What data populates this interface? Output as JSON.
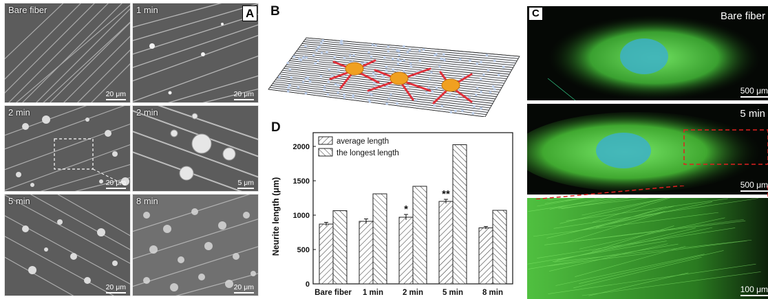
{
  "panel_a": {
    "letter": "A",
    "images": [
      {
        "label": "Bare fiber",
        "scale": "20 μm"
      },
      {
        "label": "1 min",
        "scale": "20 μm"
      },
      {
        "label": "2 min",
        "scale": "20 μm"
      },
      {
        "label": "2 min",
        "scale": "5 μm"
      },
      {
        "label": "5 min",
        "scale": "20 μm"
      },
      {
        "label": "8 min",
        "scale": "20 μm"
      }
    ]
  },
  "panel_b": {
    "letter": "B"
  },
  "panel_c": {
    "letter": "C",
    "images": [
      {
        "label": "Bare fiber",
        "scale": "500 μm"
      },
      {
        "label": "5 min",
        "scale": "500 μm"
      },
      {
        "label": "",
        "scale": "100 μm"
      }
    ]
  },
  "panel_d": {
    "letter": "D"
  },
  "chart_data": {
    "type": "bar",
    "title": "",
    "xlabel": "",
    "ylabel": "Neurite length (μm)",
    "ylim": [
      0,
      2200
    ],
    "yticks": [
      0,
      500,
      1000,
      1500,
      2000
    ],
    "categories": [
      "Bare fiber",
      "1 min",
      "2 min",
      "5 min",
      "8 min"
    ],
    "series": [
      {
        "name": "average length",
        "values": [
          870,
          910,
          970,
          1200,
          815
        ],
        "errors": [
          25,
          35,
          40,
          30,
          20
        ],
        "hatch": "forward"
      },
      {
        "name": "the longest length",
        "values": [
          1065,
          1310,
          1420,
          2025,
          1070
        ],
        "hatch": "backward"
      }
    ],
    "annotations": [
      {
        "category": "2 min",
        "series": "average length",
        "text": "*"
      },
      {
        "category": "5 min",
        "series": "average length",
        "text": "**"
      }
    ],
    "legend_position": "top-left",
    "colors": {
      "bar_fill": "#ffffff",
      "bar_stroke": "#222222"
    }
  }
}
